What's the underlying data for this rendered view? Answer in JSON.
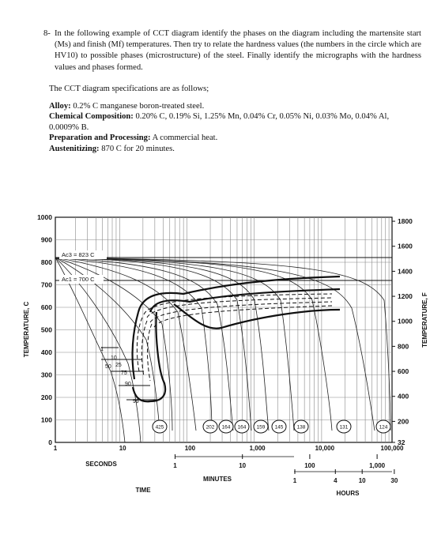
{
  "question": {
    "number": "8-",
    "text": "In the following example of CCT diagram identify the phases on the diagram including the martensite start (Ms) and finish (Mf) temperatures. Then try to relate the hardness values (the numbers in the circle which are HV10) to possible phases (microstructure) of the steel. Finally identify the micrographs with the hardness values and phases formed."
  },
  "specs": {
    "intro": "The CCT diagram specifications are as follows;",
    "alloy_label": "Alloy:",
    "alloy_value": "0.2% C manganese boron-treated steel.",
    "chem_label": "Chemical Composition:",
    "chem_value": "0.20% C, 0.19% Si, 1.25% Mn, 0.04% Cr, 0.05% Ni, 0.03% Mo, 0.04% Al, 0.0009% B.",
    "prep_label": "Preparation and Processing:",
    "prep_value": "A commercial heat.",
    "aus_label": "Austenitizing:",
    "aus_value": "870 C for 20 minutes."
  },
  "chart_data": {
    "type": "line",
    "left_axis": {
      "label": "TEMPERATURE, C",
      "ticks": [
        "1000",
        "900",
        "800",
        "700",
        "600",
        "500",
        "400",
        "300",
        "200",
        "100",
        "0"
      ]
    },
    "right_axis": {
      "label": "TEMPERATURE, F",
      "ticks": [
        "1800",
        "1600",
        "1400",
        "1200",
        "1000",
        "800",
        "600",
        "400",
        "200",
        "32"
      ]
    },
    "x_axis_seconds": {
      "label": "SECONDS",
      "ticks": [
        "1",
        "10",
        "100",
        "1,000",
        "10,000",
        "100,000"
      ]
    },
    "x_axis_minutes": {
      "label": "MINUTES",
      "ticks": [
        "1",
        "10",
        "100",
        "1,000"
      ]
    },
    "x_axis_hours": {
      "label": "HOURS",
      "ticks": [
        "1",
        "4",
        "10",
        "30"
      ]
    },
    "x_axis_title": "TIME",
    "annotations": {
      "ac3": "Ac3 = 823 C",
      "ac1": "Ac1 = 700 C",
      "pct_10": "10",
      "pct_25": "25",
      "pct_50": "50",
      "pct_75": "75",
      "pct_90": "90",
      "pct_99": "99",
      "pct_1": "1"
    },
    "hardness_circles": [
      "425",
      "202",
      "164",
      "164",
      "159",
      "145",
      "138",
      "131",
      "124"
    ]
  }
}
